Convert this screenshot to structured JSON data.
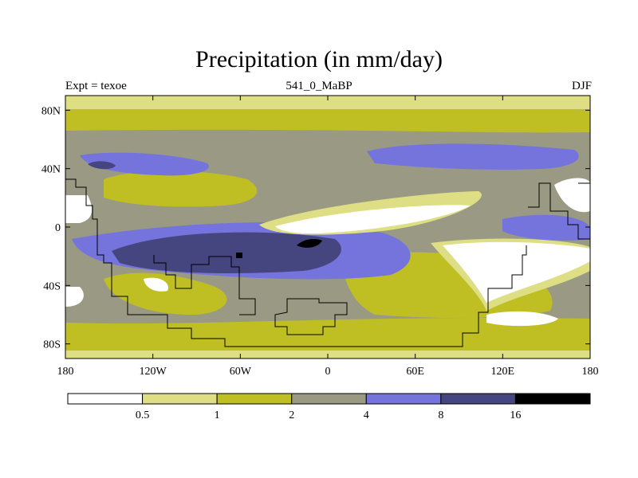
{
  "title": "Precipitation (in mm/day)",
  "subtitle_left": "Expt = texoe",
  "subtitle_center": "541_0_MaBP",
  "subtitle_right": "DJF",
  "chart_data": {
    "type": "heatmap",
    "title": "Precipitation (in mm/day)",
    "variable": "Precipitation",
    "units": "mm/day",
    "season": "DJF",
    "experiment": "texoe",
    "period": "541_0_MaBP",
    "xlim": [
      -180,
      180
    ],
    "ylim": [
      -90,
      90
    ],
    "x_ticks": [
      {
        "value": -180,
        "label": "180"
      },
      {
        "value": -120,
        "label": "120W"
      },
      {
        "value": -60,
        "label": "60W"
      },
      {
        "value": 0,
        "label": "0"
      },
      {
        "value": 60,
        "label": "60E"
      },
      {
        "value": 120,
        "label": "120E"
      },
      {
        "value": 180,
        "label": "180"
      }
    ],
    "y_ticks": [
      {
        "value": 80,
        "label": "80N"
      },
      {
        "value": 40,
        "label": "40N"
      },
      {
        "value": 0,
        "label": "0"
      },
      {
        "value": -40,
        "label": "40S"
      },
      {
        "value": -80,
        "label": "80S"
      }
    ],
    "contour_levels": [
      0.5,
      1,
      2,
      4,
      8,
      16
    ],
    "colorbar_labels": [
      "0.5",
      "1",
      "2",
      "4",
      "8",
      "16"
    ],
    "colorbar_colors": [
      "#ffffff",
      "#dede84",
      "#bfbf24",
      "#9a9a84",
      "#7474dc",
      "#45457f",
      "#000000"
    ]
  }
}
